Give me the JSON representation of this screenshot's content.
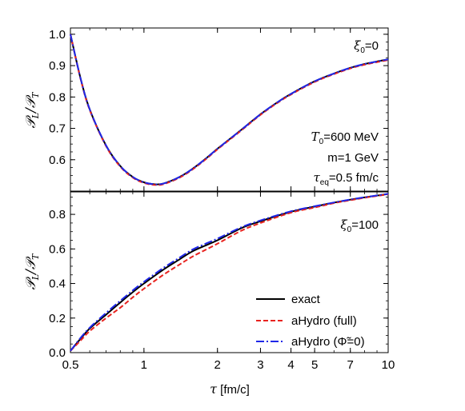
{
  "chart_data": [
    {
      "type": "line",
      "panel": "top",
      "ylabel": "𝒫L/𝒫T",
      "ylabel_main": "𝒫",
      "ylabel_sub1": "L",
      "ylabel_sub2": "T",
      "ylabel_slash": "/",
      "xscale": "log",
      "xlim": [
        0.5,
        10
      ],
      "ylim": [
        0.5,
        1.02
      ],
      "yticks": [
        0.6,
        0.7,
        0.8,
        0.9,
        1.0
      ],
      "ytick_labels": [
        "0.6",
        "0.7",
        "0.8",
        "0.9",
        "1.0"
      ],
      "annotation_xi": {
        "symbol": "ξ",
        "sub": "0",
        "rest": "=0"
      },
      "params": [
        {
          "symbol": "T",
          "sub": "0",
          "rest": "=600 MeV"
        },
        {
          "symbol": "",
          "sub": "",
          "rest": "m=1 GeV"
        },
        {
          "symbol": "τ",
          "sub": "eq",
          "rest": "=0.5 fm/c"
        }
      ],
      "x": [
        0.5,
        0.55,
        0.6,
        0.7,
        0.8,
        0.9,
        1.0,
        1.1,
        1.2,
        1.4,
        1.6,
        1.8,
        2.0,
        2.5,
        3.0,
        3.5,
        4.0,
        5.0,
        6.0,
        7.0,
        8.0,
        10.0
      ],
      "series": [
        {
          "name": "exact",
          "color": "#000000",
          "dash": "solid",
          "values": [
            1.0,
            0.86,
            0.76,
            0.645,
            0.58,
            0.545,
            0.528,
            0.522,
            0.524,
            0.545,
            0.574,
            0.605,
            0.635,
            0.695,
            0.745,
            0.782,
            0.81,
            0.85,
            0.875,
            0.893,
            0.905,
            0.92
          ]
        },
        {
          "name": "aHydro (full)",
          "color": "#e8231f",
          "dash": "long-dash",
          "values": [
            1.0,
            0.858,
            0.758,
            0.643,
            0.578,
            0.543,
            0.526,
            0.52,
            0.522,
            0.543,
            0.572,
            0.603,
            0.633,
            0.693,
            0.743,
            0.78,
            0.808,
            0.848,
            0.873,
            0.891,
            0.903,
            0.918
          ]
        },
        {
          "name": "aHydro (Φ̃=0)",
          "color": "#1f27e8",
          "dash": "dash-dot",
          "values": [
            1.0,
            0.86,
            0.76,
            0.645,
            0.58,
            0.545,
            0.528,
            0.522,
            0.524,
            0.545,
            0.574,
            0.605,
            0.635,
            0.695,
            0.745,
            0.782,
            0.81,
            0.85,
            0.875,
            0.893,
            0.905,
            0.92
          ]
        }
      ]
    },
    {
      "type": "line",
      "panel": "bottom",
      "ylabel": "𝒫L/𝒫T",
      "ylabel_main": "𝒫",
      "ylabel_sub1": "L",
      "ylabel_sub2": "T",
      "ylabel_slash": "/",
      "xlabel_symbol": "τ",
      "xlabel_rest": " [fm/c]",
      "xscale": "log",
      "xlim": [
        0.5,
        10
      ],
      "ylim": [
        0,
        0.93
      ],
      "xticks": [
        0.5,
        1,
        2,
        3,
        4,
        5,
        7,
        10
      ],
      "xtick_labels": [
        "0.5",
        "1",
        "2",
        "3",
        "4",
        "5",
        "7",
        "10"
      ],
      "yticks": [
        0.0,
        0.2,
        0.4,
        0.6,
        0.8
      ],
      "ytick_labels": [
        "0.0",
        "0.2",
        "0.4",
        "0.6",
        "0.8"
      ],
      "annotation_xi": {
        "symbol": "ξ",
        "sub": "0",
        "rest": "=100"
      },
      "legend": {
        "placement": "bottom-right",
        "entries": [
          "exact",
          "aHydro (full)",
          "aHydro (Φ̃=0)"
        ]
      },
      "x": [
        0.5,
        0.55,
        0.6,
        0.7,
        0.8,
        0.9,
        1.0,
        1.2,
        1.4,
        1.6,
        2.0,
        2.5,
        3.0,
        4.0,
        5.0,
        6.0,
        7.0,
        8.0,
        10.0
      ],
      "series": [
        {
          "name": "exact",
          "color": "#000000",
          "dash": "solid",
          "values": [
            0.01,
            0.08,
            0.14,
            0.22,
            0.29,
            0.35,
            0.4,
            0.48,
            0.54,
            0.59,
            0.65,
            0.72,
            0.76,
            0.815,
            0.845,
            0.868,
            0.885,
            0.898,
            0.918
          ]
        },
        {
          "name": "aHydro (full)",
          "color": "#e8231f",
          "dash": "long-dash",
          "values": [
            0.01,
            0.07,
            0.125,
            0.2,
            0.26,
            0.32,
            0.37,
            0.45,
            0.51,
            0.56,
            0.63,
            0.705,
            0.75,
            0.81,
            0.84,
            0.865,
            0.882,
            0.896,
            0.916
          ]
        },
        {
          "name": "aHydro (Φ̃=0)",
          "color": "#1f27e8",
          "dash": "dash-dot",
          "values": [
            0.01,
            0.085,
            0.145,
            0.23,
            0.3,
            0.36,
            0.41,
            0.49,
            0.55,
            0.6,
            0.66,
            0.725,
            0.765,
            0.818,
            0.847,
            0.869,
            0.886,
            0.899,
            0.919
          ]
        }
      ]
    }
  ]
}
